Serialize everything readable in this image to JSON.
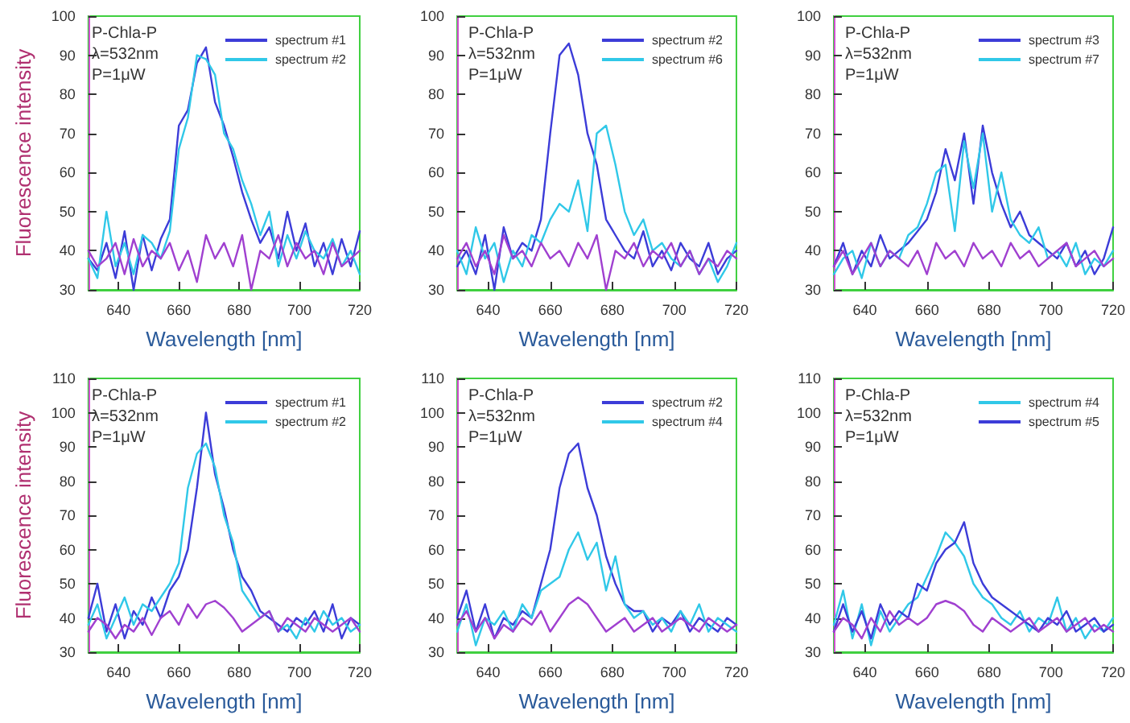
{
  "chart_data": [
    {
      "type": "line",
      "ylabel": "Fluorescence intensity",
      "xlabel": "Wavelength [nm]",
      "annotations": [
        "P-Chla-P",
        "λ=532nm",
        "P=1μW"
      ],
      "xlim": [
        630,
        720
      ],
      "xticks": [
        640,
        660,
        680,
        700,
        720
      ],
      "ylim": [
        30,
        100
      ],
      "yticks": [
        30,
        40,
        50,
        60,
        70,
        80,
        90,
        100
      ],
      "legend": "top right",
      "grid": false,
      "marker": "none",
      "line_style": "solid",
      "x": [
        630,
        633,
        636,
        639,
        642,
        645,
        648,
        651,
        654,
        657,
        660,
        663,
        666,
        669,
        672,
        675,
        678,
        681,
        684,
        687,
        690,
        693,
        696,
        699,
        702,
        705,
        708,
        711,
        714,
        717,
        720
      ],
      "series": [
        {
          "name": "spectrum #1",
          "color": "#3c3cd8",
          "values": [
            38,
            35,
            42,
            33,
            45,
            30,
            44,
            35,
            43,
            48,
            72,
            76,
            88,
            92,
            78,
            72,
            64,
            55,
            48,
            42,
            46,
            38,
            50,
            40,
            47,
            36,
            42,
            34,
            43,
            36,
            45
          ]
        },
        {
          "name": "spectrum #2",
          "color": "#30c8e8",
          "values": [
            38,
            33,
            50,
            36,
            42,
            34,
            44,
            42,
            38,
            45,
            66,
            74,
            90,
            89,
            85,
            70,
            66,
            58,
            52,
            44,
            50,
            36,
            44,
            38,
            45,
            40,
            38,
            43,
            36,
            40,
            34
          ]
        },
        {
          "color": "#a040d0",
          "values": [
            40,
            36,
            38,
            42,
            34,
            43,
            36,
            40,
            38,
            42,
            35,
            40,
            32,
            44,
            38,
            42,
            36,
            44,
            30,
            40,
            38,
            44,
            36,
            42,
            38,
            40,
            34,
            42,
            36,
            38,
            40
          ]
        }
      ]
    },
    {
      "type": "line",
      "xlabel": "Wavelength [nm]",
      "annotations": [
        "P-Chla-P",
        "λ=532nm",
        "P=1μW"
      ],
      "xlim": [
        630,
        720
      ],
      "xticks": [
        640,
        660,
        680,
        700,
        720
      ],
      "ylim": [
        30,
        100
      ],
      "yticks": [
        30,
        40,
        50,
        60,
        70,
        80,
        90,
        100
      ],
      "legend": "top right",
      "grid": false,
      "marker": "none",
      "line_style": "solid",
      "x": [
        630,
        633,
        636,
        639,
        642,
        645,
        648,
        651,
        654,
        657,
        660,
        663,
        666,
        669,
        672,
        675,
        678,
        681,
        684,
        687,
        690,
        693,
        696,
        699,
        702,
        705,
        708,
        711,
        714,
        717,
        720
      ],
      "series": [
        {
          "name": "spectrum #2",
          "color": "#3c3cd8",
          "values": [
            36,
            40,
            34,
            44,
            30,
            46,
            38,
            42,
            40,
            48,
            70,
            90,
            93,
            85,
            70,
            62,
            48,
            44,
            40,
            38,
            45,
            36,
            40,
            35,
            42,
            38,
            36,
            42,
            34,
            38,
            40
          ]
        },
        {
          "name": "spectrum #6",
          "color": "#30c8e8",
          "values": [
            40,
            34,
            46,
            38,
            42,
            32,
            40,
            36,
            44,
            42,
            48,
            52,
            50,
            58,
            45,
            70,
            72,
            62,
            50,
            44,
            48,
            40,
            42,
            38,
            36,
            40,
            34,
            38,
            32,
            36,
            42
          ]
        },
        {
          "color": "#a040d0",
          "values": [
            38,
            42,
            36,
            40,
            34,
            44,
            38,
            40,
            36,
            42,
            38,
            40,
            36,
            42,
            38,
            44,
            30,
            40,
            38,
            42,
            36,
            40,
            38,
            42,
            36,
            40,
            34,
            38,
            36,
            40,
            38
          ]
        }
      ]
    },
    {
      "type": "line",
      "xlabel": "Wavelength [nm]",
      "annotations": [
        "P-Chla-P",
        "λ=532nm",
        "P=1μW"
      ],
      "xlim": [
        630,
        720
      ],
      "xticks": [
        640,
        660,
        680,
        700,
        720
      ],
      "ylim": [
        30,
        100
      ],
      "yticks": [
        30,
        40,
        50,
        60,
        70,
        80,
        90,
        100
      ],
      "legend": "top right",
      "grid": false,
      "marker": "none",
      "line_style": "solid",
      "x": [
        630,
        633,
        636,
        639,
        642,
        645,
        648,
        651,
        654,
        657,
        660,
        663,
        666,
        669,
        672,
        675,
        678,
        681,
        684,
        687,
        690,
        693,
        696,
        699,
        702,
        705,
        708,
        711,
        714,
        717,
        720
      ],
      "series": [
        {
          "name": "spectrum #3",
          "color": "#3c3cd8",
          "values": [
            36,
            42,
            34,
            40,
            36,
            44,
            38,
            40,
            42,
            45,
            48,
            55,
            66,
            58,
            70,
            52,
            72,
            60,
            52,
            46,
            50,
            44,
            42,
            40,
            38,
            42,
            36,
            40,
            34,
            38,
            46
          ]
        },
        {
          "name": "spectrum #7",
          "color": "#30c8e8",
          "values": [
            34,
            38,
            40,
            33,
            42,
            36,
            40,
            38,
            44,
            46,
            52,
            60,
            62,
            45,
            68,
            56,
            70,
            50,
            60,
            48,
            44,
            42,
            46,
            38,
            40,
            36,
            42,
            34,
            38,
            36,
            40
          ]
        },
        {
          "color": "#a040d0",
          "values": [
            36,
            40,
            34,
            38,
            42,
            36,
            40,
            38,
            36,
            40,
            34,
            42,
            38,
            40,
            36,
            42,
            38,
            40,
            36,
            42,
            38,
            40,
            36,
            38,
            40,
            42,
            36,
            38,
            40,
            36,
            38
          ]
        }
      ]
    },
    {
      "type": "line",
      "ylabel": "Fluorescence intensity",
      "xlabel": "Wavelength [nm]",
      "annotations": [
        "P-Chla-P",
        "λ=532nm",
        "P=1μW"
      ],
      "xlim": [
        630,
        720
      ],
      "xticks": [
        640,
        660,
        680,
        700,
        720
      ],
      "ylim": [
        30,
        110
      ],
      "yticks": [
        30,
        40,
        50,
        60,
        70,
        80,
        90,
        100,
        110
      ],
      "legend": "top right",
      "grid": false,
      "marker": "none",
      "line_style": "solid",
      "x": [
        630,
        633,
        636,
        639,
        642,
        645,
        648,
        651,
        654,
        657,
        660,
        663,
        666,
        669,
        672,
        675,
        678,
        681,
        684,
        687,
        690,
        693,
        696,
        699,
        702,
        705,
        708,
        711,
        714,
        717,
        720
      ],
      "series": [
        {
          "name": "spectrum #1",
          "color": "#3c3cd8",
          "values": [
            40,
            50,
            36,
            44,
            34,
            42,
            38,
            46,
            40,
            48,
            52,
            60,
            78,
            100,
            82,
            72,
            60,
            52,
            48,
            42,
            40,
            38,
            36,
            40,
            38,
            42,
            36,
            44,
            34,
            40,
            38
          ]
        },
        {
          "name": "spectrum #2",
          "color": "#30c8e8",
          "values": [
            38,
            44,
            34,
            40,
            46,
            38,
            44,
            42,
            46,
            50,
            56,
            78,
            88,
            91,
            84,
            70,
            62,
            48,
            44,
            40,
            42,
            36,
            38,
            34,
            40,
            36,
            42,
            38,
            40,
            36,
            38
          ]
        },
        {
          "color": "#a040d0",
          "values": [
            36,
            40,
            38,
            34,
            38,
            36,
            40,
            35,
            40,
            42,
            38,
            44,
            40,
            44,
            45,
            43,
            40,
            36,
            38,
            40,
            42,
            36,
            40,
            38,
            36,
            40,
            38,
            36,
            38,
            40,
            36
          ]
        }
      ]
    },
    {
      "type": "line",
      "xlabel": "Wavelength [nm]",
      "annotations": [
        "P-Chla-P",
        "λ=532nm",
        "P=1μW"
      ],
      "xlim": [
        630,
        720
      ],
      "xticks": [
        640,
        660,
        680,
        700,
        720
      ],
      "ylim": [
        30,
        110
      ],
      "yticks": [
        30,
        40,
        50,
        60,
        70,
        80,
        90,
        100,
        110
      ],
      "legend": "top right",
      "grid": false,
      "marker": "none",
      "line_style": "solid",
      "x": [
        630,
        633,
        636,
        639,
        642,
        645,
        648,
        651,
        654,
        657,
        660,
        663,
        666,
        669,
        672,
        675,
        678,
        681,
        684,
        687,
        690,
        693,
        696,
        699,
        702,
        705,
        708,
        711,
        714,
        717,
        720
      ],
      "series": [
        {
          "name": "spectrum #2",
          "color": "#3c3cd8",
          "values": [
            40,
            48,
            36,
            44,
            34,
            40,
            38,
            42,
            40,
            50,
            60,
            78,
            88,
            91,
            78,
            70,
            58,
            50,
            44,
            42,
            42,
            36,
            40,
            38,
            42,
            36,
            40,
            38,
            36,
            40,
            38
          ]
        },
        {
          "name": "spectrum #4",
          "color": "#30c8e8",
          "values": [
            36,
            44,
            32,
            40,
            38,
            42,
            36,
            44,
            40,
            48,
            50,
            52,
            60,
            65,
            57,
            62,
            48,
            58,
            44,
            40,
            42,
            38,
            40,
            36,
            42,
            38,
            44,
            36,
            40,
            38,
            36
          ]
        },
        {
          "color": "#a040d0",
          "values": [
            38,
            42,
            36,
            40,
            34,
            38,
            36,
            40,
            38,
            42,
            36,
            40,
            44,
            46,
            44,
            40,
            36,
            38,
            40,
            36,
            38,
            40,
            36,
            38,
            40,
            38,
            36,
            40,
            38,
            36,
            38
          ]
        }
      ]
    },
    {
      "type": "line",
      "xlabel": "Wavelength [nm]",
      "annotations": [
        "P-Chla-P",
        "λ=532nm",
        "P=1μW"
      ],
      "xlim": [
        630,
        720
      ],
      "xticks": [
        640,
        660,
        680,
        700,
        720
      ],
      "ylim": [
        30,
        110
      ],
      "yticks": [
        30,
        40,
        50,
        60,
        70,
        80,
        90,
        100,
        110
      ],
      "legend": "top right",
      "grid": false,
      "marker": "none",
      "line_style": "solid",
      "x": [
        630,
        633,
        636,
        639,
        642,
        645,
        648,
        651,
        654,
        657,
        660,
        663,
        666,
        669,
        672,
        675,
        678,
        681,
        684,
        687,
        690,
        693,
        696,
        699,
        702,
        705,
        708,
        711,
        714,
        717,
        720
      ],
      "series": [
        {
          "name": "spectrum #4",
          "color": "#30c8e8",
          "values": [
            38,
            48,
            34,
            44,
            32,
            42,
            36,
            40,
            44,
            46,
            52,
            58,
            65,
            62,
            58,
            50,
            46,
            44,
            40,
            38,
            42,
            36,
            40,
            38,
            46,
            36,
            40,
            34,
            38,
            36,
            40
          ]
        },
        {
          "name": "spectrum #5",
          "color": "#3c3cd8",
          "values": [
            36,
            44,
            36,
            42,
            34,
            44,
            38,
            42,
            40,
            50,
            48,
            56,
            60,
            62,
            68,
            56,
            50,
            46,
            44,
            42,
            40,
            38,
            36,
            40,
            38,
            42,
            36,
            38,
            40,
            36,
            38
          ]
        },
        {
          "color": "#a040d0",
          "values": [
            36,
            40,
            38,
            34,
            40,
            36,
            42,
            38,
            40,
            38,
            40,
            44,
            45,
            44,
            42,
            38,
            36,
            40,
            38,
            36,
            38,
            40,
            36,
            38,
            40,
            36,
            38,
            40,
            36,
            38,
            36
          ]
        }
      ]
    }
  ]
}
